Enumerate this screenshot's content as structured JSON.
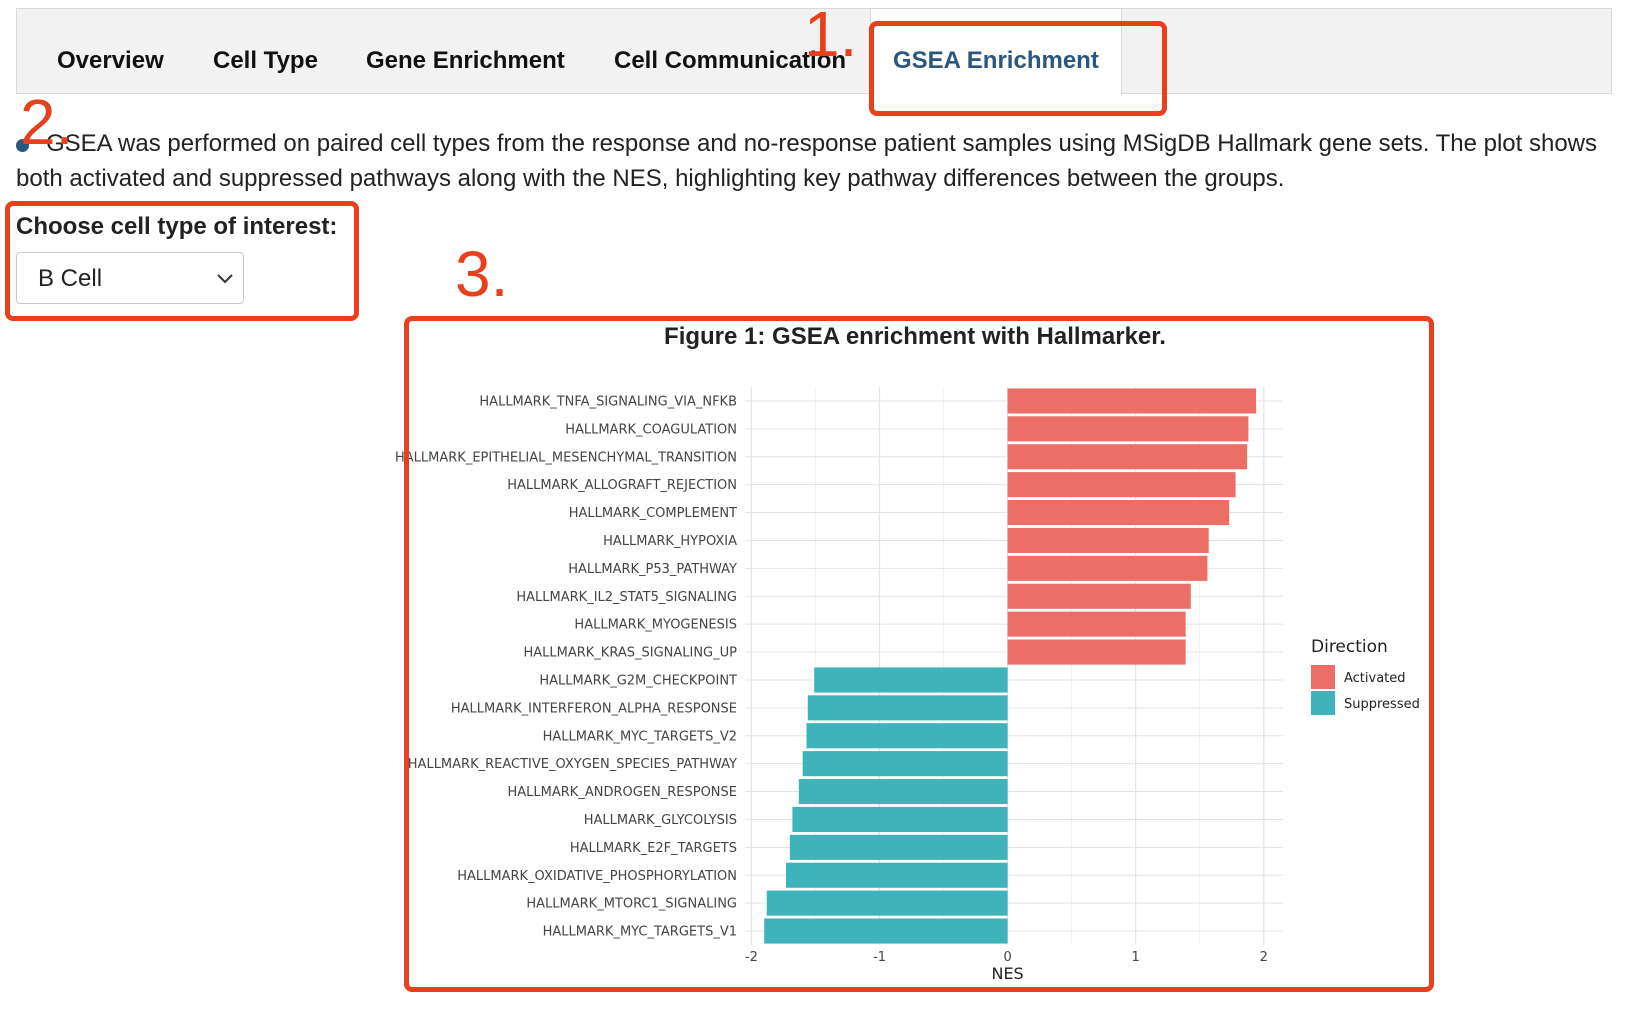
{
  "tabs": [
    {
      "label": "Overview"
    },
    {
      "label": "Cell Type"
    },
    {
      "label": "Gene Enrichment"
    },
    {
      "label": "Cell Communication"
    },
    {
      "label": "GSEA Enrichment",
      "active": true
    }
  ],
  "annotations": [
    "1.",
    "2.",
    "3."
  ],
  "description": "GSEA was performed on paired cell types from the response and no-response patient samples using MSigDB Hallmark gene sets. The plot shows both activated and suppressed pathways along with the NES, highlighting key pathway differences between the groups.",
  "cell_type_selector": {
    "label": "Choose cell type of interest:",
    "value": "B Cell"
  },
  "colors": {
    "accent": "#2a5680",
    "annotation": "#e8401c",
    "activated": "#eb6f66",
    "suppressed": "#3fb3ba"
  },
  "chart_data": {
    "type": "bar",
    "orientation": "horizontal",
    "title": "Figure 1: GSEA enrichment with Hallmarker.",
    "xlabel": "NES",
    "ylabel": "",
    "xlim": [
      -2.05,
      2.15
    ],
    "xticks": [
      -2,
      -1,
      0,
      1,
      2
    ],
    "grid": true,
    "legend": {
      "title": "Direction",
      "placement": "right",
      "entries": [
        "Activated",
        "Suppressed"
      ]
    },
    "categories": [
      "HALLMARK_TNFA_SIGNALING_VIA_NFKB",
      "HALLMARK_COAGULATION",
      "HALLMARK_EPITHELIAL_MESENCHYMAL_TRANSITION",
      "HALLMARK_ALLOGRAFT_REJECTION",
      "HALLMARK_COMPLEMENT",
      "HALLMARK_HYPOXIA",
      "HALLMARK_P53_PATHWAY",
      "HALLMARK_IL2_STAT5_SIGNALING",
      "HALLMARK_MYOGENESIS",
      "HALLMARK_KRAS_SIGNALING_UP",
      "HALLMARK_G2M_CHECKPOINT",
      "HALLMARK_INTERFERON_ALPHA_RESPONSE",
      "HALLMARK_MYC_TARGETS_V2",
      "HALLMARK_REACTIVE_OXYGEN_SPECIES_PATHWAY",
      "HALLMARK_ANDROGEN_RESPONSE",
      "HALLMARK_GLYCOLYSIS",
      "HALLMARK_E2F_TARGETS",
      "HALLMARK_OXIDATIVE_PHOSPHORYLATION",
      "HALLMARK_MTORC1_SIGNALING",
      "HALLMARK_MYC_TARGETS_V1"
    ],
    "values": [
      1.94,
      1.88,
      1.87,
      1.78,
      1.73,
      1.57,
      1.56,
      1.43,
      1.39,
      1.39,
      -1.51,
      -1.56,
      -1.57,
      -1.6,
      -1.63,
      -1.68,
      -1.7,
      -1.73,
      -1.88,
      -1.9
    ],
    "direction": [
      "Activated",
      "Activated",
      "Activated",
      "Activated",
      "Activated",
      "Activated",
      "Activated",
      "Activated",
      "Activated",
      "Activated",
      "Suppressed",
      "Suppressed",
      "Suppressed",
      "Suppressed",
      "Suppressed",
      "Suppressed",
      "Suppressed",
      "Suppressed",
      "Suppressed",
      "Suppressed"
    ]
  }
}
